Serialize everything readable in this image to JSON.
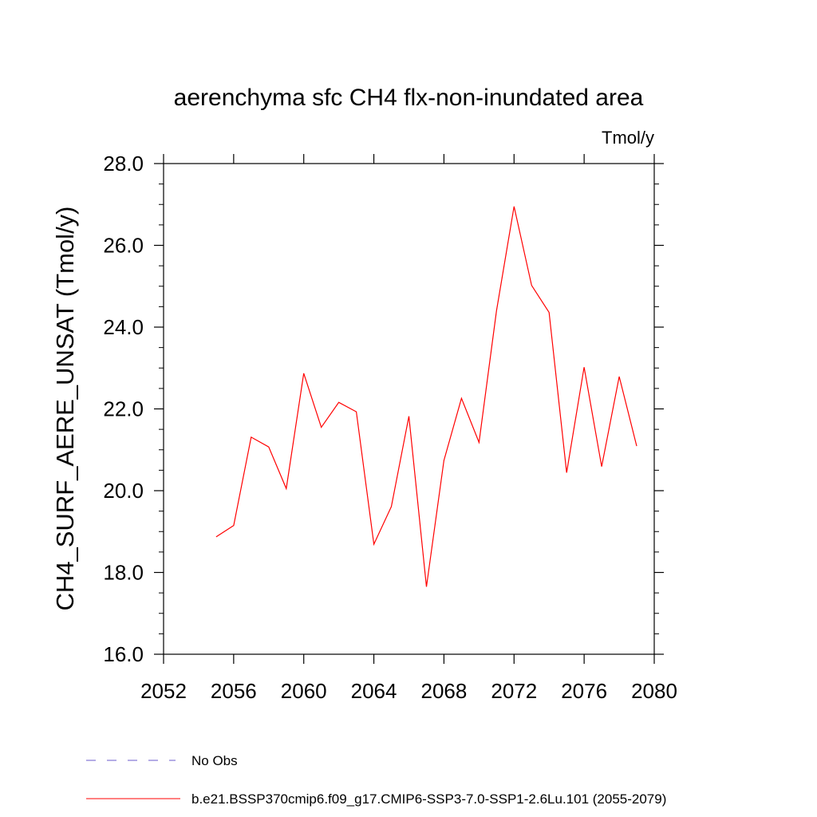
{
  "chart_data": {
    "type": "line",
    "title": "aerenchyma sfc CH4 flx-non-inundated area",
    "units_label": "Tmol/y",
    "ylabel": "CH4_SURF_AERE_UNSAT  (Tmol/y)",
    "xlabel": "",
    "xlim": [
      2052,
      2080
    ],
    "ylim": [
      16.0,
      28.0
    ],
    "x_ticks": [
      "2052",
      "2056",
      "2060",
      "2064",
      "2068",
      "2072",
      "2076",
      "2080"
    ],
    "y_ticks": [
      "16.0",
      "18.0",
      "20.0",
      "22.0",
      "24.0",
      "26.0",
      "28.0"
    ],
    "grid": false,
    "legend_position": "bottom",
    "series": [
      {
        "name": "b.e21.BSSP370cmip6.f09_g17.CMIP6-SSP3-7.0-SSP1-2.6Lu.101 (2055-2079)",
        "color": "#ff0000",
        "style": "solid",
        "x": [
          2055,
          2056,
          2057,
          2058,
          2059,
          2060,
          2061,
          2062,
          2063,
          2064,
          2065,
          2066,
          2067,
          2068,
          2069,
          2070,
          2071,
          2072,
          2073,
          2074,
          2075,
          2076,
          2077,
          2078,
          2079
        ],
        "y": [
          18.87,
          19.15,
          21.31,
          21.07,
          20.05,
          22.87,
          21.55,
          22.16,
          21.93,
          18.69,
          19.61,
          21.82,
          17.65,
          20.74,
          22.26,
          21.18,
          24.4,
          26.95,
          25.02,
          24.36,
          20.44,
          23.02,
          20.59,
          22.79,
          21.09
        ]
      }
    ],
    "legend": [
      {
        "label": "No Obs",
        "color": "#6a5acd",
        "style": "dashed"
      },
      {
        "label": "b.e21.BSSP370cmip6.f09_g17.CMIP6-SSP3-7.0-SSP1-2.6Lu.101 (2055-2079)",
        "color": "#ff0000",
        "style": "solid"
      }
    ]
  }
}
